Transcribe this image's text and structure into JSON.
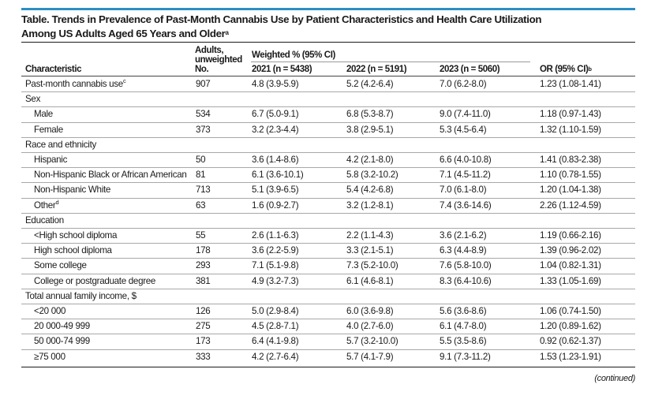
{
  "table": {
    "title_line1": "Table. Trends in Prevalence of Past-Month Cannabis Use by Patient Characteristics and Health Care Utilization",
    "title_line2": "Among US Adults Aged 65 Years and Older",
    "title_sup": "a",
    "headers": {
      "characteristic": "Characteristic",
      "adults_line1": "Adults,",
      "adults_line2": "unweighted",
      "adults_line3": "No.",
      "weighted": "Weighted % (95% CI)",
      "y2021": "2021 (n = 5438)",
      "y2022": "2022 (n = 5191)",
      "y2023": "2023 (n = 5060)",
      "or": "OR (95% CI)",
      "or_sup": "b"
    },
    "rows": [
      {
        "label": "Past-month cannabis use",
        "sup": "c",
        "indent": false,
        "n": "907",
        "y2021": "4.8 (3.9-5.9)",
        "y2022": "5.2 (4.2-6.4)",
        "y2023": "7.0 (6.2-8.0)",
        "or": "1.23 (1.08-1.41)"
      },
      {
        "label": "Sex",
        "sup": "",
        "indent": false,
        "n": "",
        "y2021": "",
        "y2022": "",
        "y2023": "",
        "or": ""
      },
      {
        "label": "Male",
        "sup": "",
        "indent": true,
        "n": "534",
        "y2021": "6.7 (5.0-9.1)",
        "y2022": "6.8 (5.3-8.7)",
        "y2023": "9.0 (7.4-11.0)",
        "or": "1.18 (0.97-1.43)"
      },
      {
        "label": "Female",
        "sup": "",
        "indent": true,
        "n": "373",
        "y2021": "3.2 (2.3-4.4)",
        "y2022": "3.8 (2.9-5.1)",
        "y2023": "5.3 (4.5-6.4)",
        "or": "1.32 (1.10-1.59)"
      },
      {
        "label": "Race and ethnicity",
        "sup": "",
        "indent": false,
        "n": "",
        "y2021": "",
        "y2022": "",
        "y2023": "",
        "or": ""
      },
      {
        "label": "Hispanic",
        "sup": "",
        "indent": true,
        "n": "50",
        "y2021": "3.6 (1.4-8.6)",
        "y2022": "4.2 (2.1-8.0)",
        "y2023": "6.6 (4.0-10.8)",
        "or": "1.41 (0.83-2.38)"
      },
      {
        "label": "Non-Hispanic Black or African American",
        "sup": "",
        "indent": true,
        "n": "81",
        "y2021": "6.1 (3.6-10.1)",
        "y2022": "5.8 (3.2-10.2)",
        "y2023": "7.1 (4.5-11.2)",
        "or": "1.10 (0.78-1.55)"
      },
      {
        "label": "Non-Hispanic White",
        "sup": "",
        "indent": true,
        "n": "713",
        "y2021": "5.1 (3.9-6.5)",
        "y2022": "5.4 (4.2-6.8)",
        "y2023": "7.0 (6.1-8.0)",
        "or": "1.20 (1.04-1.38)"
      },
      {
        "label": "Other",
        "sup": "d",
        "indent": true,
        "n": "63",
        "y2021": "1.6 (0.9-2.7)",
        "y2022": "3.2 (1.2-8.1)",
        "y2023": "7.4 (3.6-14.6)",
        "or": "2.26 (1.12-4.59)"
      },
      {
        "label": "Education",
        "sup": "",
        "indent": false,
        "n": "",
        "y2021": "",
        "y2022": "",
        "y2023": "",
        "or": ""
      },
      {
        "label": "<High school diploma",
        "sup": "",
        "indent": true,
        "n": "55",
        "y2021": "2.6 (1.1-6.3)",
        "y2022": "2.2 (1.1-4.3)",
        "y2023": "3.6 (2.1-6.2)",
        "or": "1.19 (0.66-2.16)"
      },
      {
        "label": "High school diploma",
        "sup": "",
        "indent": true,
        "n": "178",
        "y2021": "3.6 (2.2-5.9)",
        "y2022": "3.3 (2.1-5.1)",
        "y2023": "6.3 (4.4-8.9)",
        "or": "1.39 (0.96-2.02)"
      },
      {
        "label": "Some college",
        "sup": "",
        "indent": true,
        "n": "293",
        "y2021": "7.1 (5.1-9.8)",
        "y2022": "7.3 (5.2-10.0)",
        "y2023": "7.6 (5.8-10.0)",
        "or": "1.04 (0.82-1.31)"
      },
      {
        "label": "College or postgraduate degree",
        "sup": "",
        "indent": true,
        "n": "381",
        "y2021": "4.9 (3.2-7.3)",
        "y2022": "6.1 (4.6-8.1)",
        "y2023": "8.3 (6.4-10.6)",
        "or": "1.33 (1.05-1.69)"
      },
      {
        "label": "Total annual family income, $",
        "sup": "",
        "indent": false,
        "n": "",
        "y2021": "",
        "y2022": "",
        "y2023": "",
        "or": ""
      },
      {
        "label": "<20 000",
        "sup": "",
        "indent": true,
        "n": "126",
        "y2021": "5.0 (2.9-8.4)",
        "y2022": "6.0 (3.6-9.8)",
        "y2023": "5.6 (3.6-8.6)",
        "or": "1.06 (0.74-1.50)"
      },
      {
        "label": "20 000-49 999",
        "sup": "",
        "indent": true,
        "n": "275",
        "y2021": "4.5 (2.8-7.1)",
        "y2022": "4.0 (2.7-6.0)",
        "y2023": "6.1 (4.7-8.0)",
        "or": "1.20 (0.89-1.62)"
      },
      {
        "label": "50 000-74 999",
        "sup": "",
        "indent": true,
        "n": "173",
        "y2021": "6.4 (4.1-9.8)",
        "y2022": "5.7 (3.2-10.0)",
        "y2023": "5.5 (3.5-8.6)",
        "or": "0.92 (0.62-1.37)"
      },
      {
        "label": "≥75 000",
        "sup": "",
        "indent": true,
        "n": "333",
        "y2021": "4.2 (2.7-6.4)",
        "y2022": "5.7 (4.1-7.9)",
        "y2023": "9.1 (7.3-11.2)",
        "or": "1.53 (1.23-1.91)"
      }
    ],
    "continued": "(continued)"
  }
}
